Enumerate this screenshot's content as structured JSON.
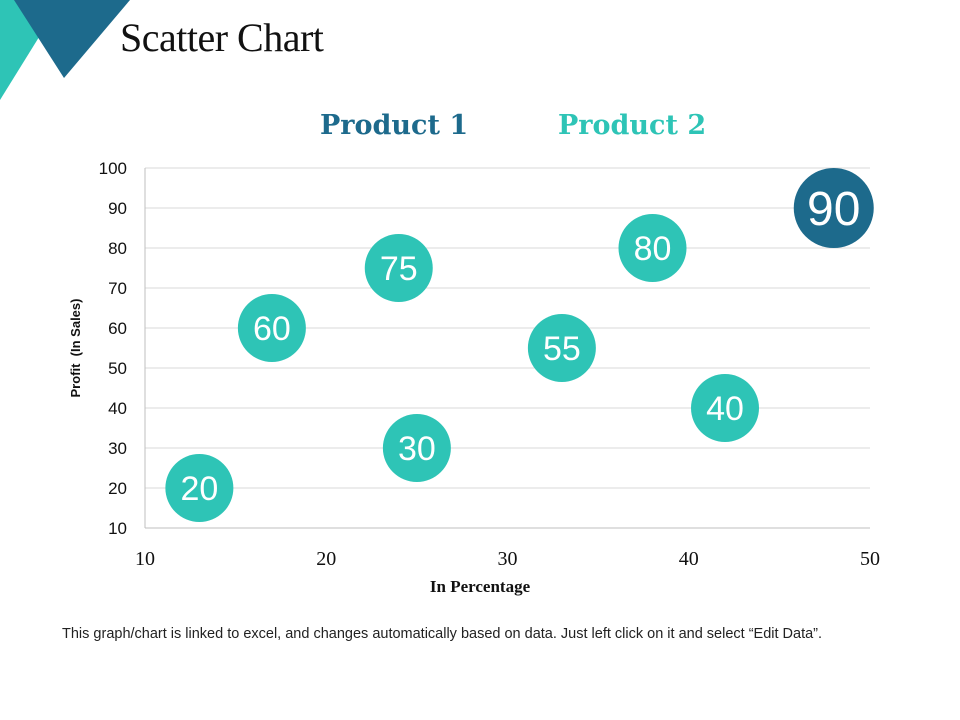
{
  "slide": {
    "title": "Scatter Chart",
    "footer": "This graph/chart is linked to excel, and changes automatically based on data. Just left click on it and select “Edit Data”."
  },
  "colors": {
    "product1": "#1d6a8c",
    "product2": "#2ec4b6",
    "corner_dark": "#1d6a8c",
    "corner_light": "#2ec4b6",
    "grid": "#d9d9d9",
    "axis": "#bfbfbf"
  },
  "chart_data": {
    "type": "scatter",
    "title": "",
    "xlabel": "In Percentage",
    "ylabel": "Profit  (In Sales)",
    "xlim": [
      10,
      50
    ],
    "ylim": [
      10,
      100
    ],
    "xticks": [
      "10",
      "20",
      "30",
      "40",
      "50"
    ],
    "yticks": [
      "10",
      "20",
      "30",
      "40",
      "50",
      "60",
      "70",
      "80",
      "90",
      "100"
    ],
    "grid": true,
    "legend_position": "top",
    "series": [
      {
        "name": "Product 1",
        "color": "#1d6a8c",
        "points": [
          {
            "x": 48,
            "y": 90,
            "label": "90"
          }
        ]
      },
      {
        "name": "Product 2",
        "color": "#2ec4b6",
        "points": [
          {
            "x": 13,
            "y": 20,
            "label": "20"
          },
          {
            "x": 17,
            "y": 60,
            "label": "60"
          },
          {
            "x": 24,
            "y": 75,
            "label": "75"
          },
          {
            "x": 25,
            "y": 30,
            "label": "30"
          },
          {
            "x": 33,
            "y": 55,
            "label": "55"
          },
          {
            "x": 38,
            "y": 80,
            "label": "80"
          },
          {
            "x": 42,
            "y": 40,
            "label": "40"
          }
        ]
      }
    ]
  }
}
